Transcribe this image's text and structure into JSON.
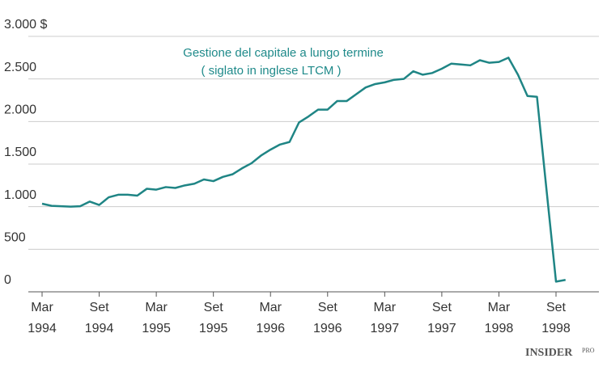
{
  "chart_data": {
    "type": "line",
    "annotation": [
      "Gestione del capitale a lungo termine",
      "( siglato in inglese LTCM )"
    ],
    "x": [
      "1994-03",
      "1994-04",
      "1994-05",
      "1994-06",
      "1994-07",
      "1994-08",
      "1994-09",
      "1994-10",
      "1994-11",
      "1994-12",
      "1995-01",
      "1995-02",
      "1995-03",
      "1995-04",
      "1995-05",
      "1995-06",
      "1995-07",
      "1995-08",
      "1995-09",
      "1995-10",
      "1995-11",
      "1995-12",
      "1996-01",
      "1996-02",
      "1996-03",
      "1996-04",
      "1996-05",
      "1996-06",
      "1996-07",
      "1996-08",
      "1996-09",
      "1996-10",
      "1996-11",
      "1996-12",
      "1997-01",
      "1997-02",
      "1997-03",
      "1997-04",
      "1997-05",
      "1997-06",
      "1997-07",
      "1997-08",
      "1997-09",
      "1997-10",
      "1997-11",
      "1997-12",
      "1998-01",
      "1998-02",
      "1998-03",
      "1998-04",
      "1998-05",
      "1998-06",
      "1998-07",
      "1998-08",
      "1998-09",
      "1998-10"
    ],
    "series": [
      {
        "name": "LTCM",
        "color": "#1f8585",
        "values": [
          1035,
          1010,
          1005,
          1000,
          1005,
          1060,
          1020,
          1110,
          1140,
          1140,
          1130,
          1210,
          1200,
          1230,
          1220,
          1250,
          1270,
          1320,
          1300,
          1350,
          1380,
          1450,
          1510,
          1600,
          1670,
          1730,
          1760,
          1990,
          2060,
          2140,
          2140,
          2240,
          2240,
          2320,
          2400,
          2440,
          2460,
          2490,
          2500,
          2590,
          2550,
          2570,
          2620,
          2680,
          2670,
          2660,
          2720,
          2690,
          2700,
          2750,
          2550,
          2300,
          2290,
          1200,
          120,
          140
        ]
      }
    ],
    "ylim": [
      0,
      3000
    ],
    "yticks": [
      0,
      500,
      {
        "value": 1000,
        "label": "1.000"
      },
      {
        "value": 1500,
        "label": "1.500"
      },
      {
        "value": 2000,
        "label": "2.000"
      },
      {
        "value": 2500,
        "label": "2.500"
      },
      {
        "value": 3000,
        "label": "3.000 $"
      }
    ],
    "xticks": [
      {
        "value": "1994-03",
        "label": "Mar 1994"
      },
      {
        "value": "1994-09",
        "label": "Set 1994"
      },
      {
        "value": "1995-03",
        "label": "Mar 1995"
      },
      {
        "value": "1995-09",
        "label": "Set 1995"
      },
      {
        "value": "1996-03",
        "label": "Mar 1996"
      },
      {
        "value": "1996-09",
        "label": "Set 1996"
      },
      {
        "value": "1997-03",
        "label": "Mar 1997"
      },
      {
        "value": "1997-09",
        "label": "Set 1997"
      },
      {
        "value": "1998-03",
        "label": "Mar 1998"
      },
      {
        "value": "1998-09",
        "label": "Set 1998"
      }
    ],
    "grid": true,
    "logo": "INSIDER",
    "logo_suffix": "PRO"
  }
}
